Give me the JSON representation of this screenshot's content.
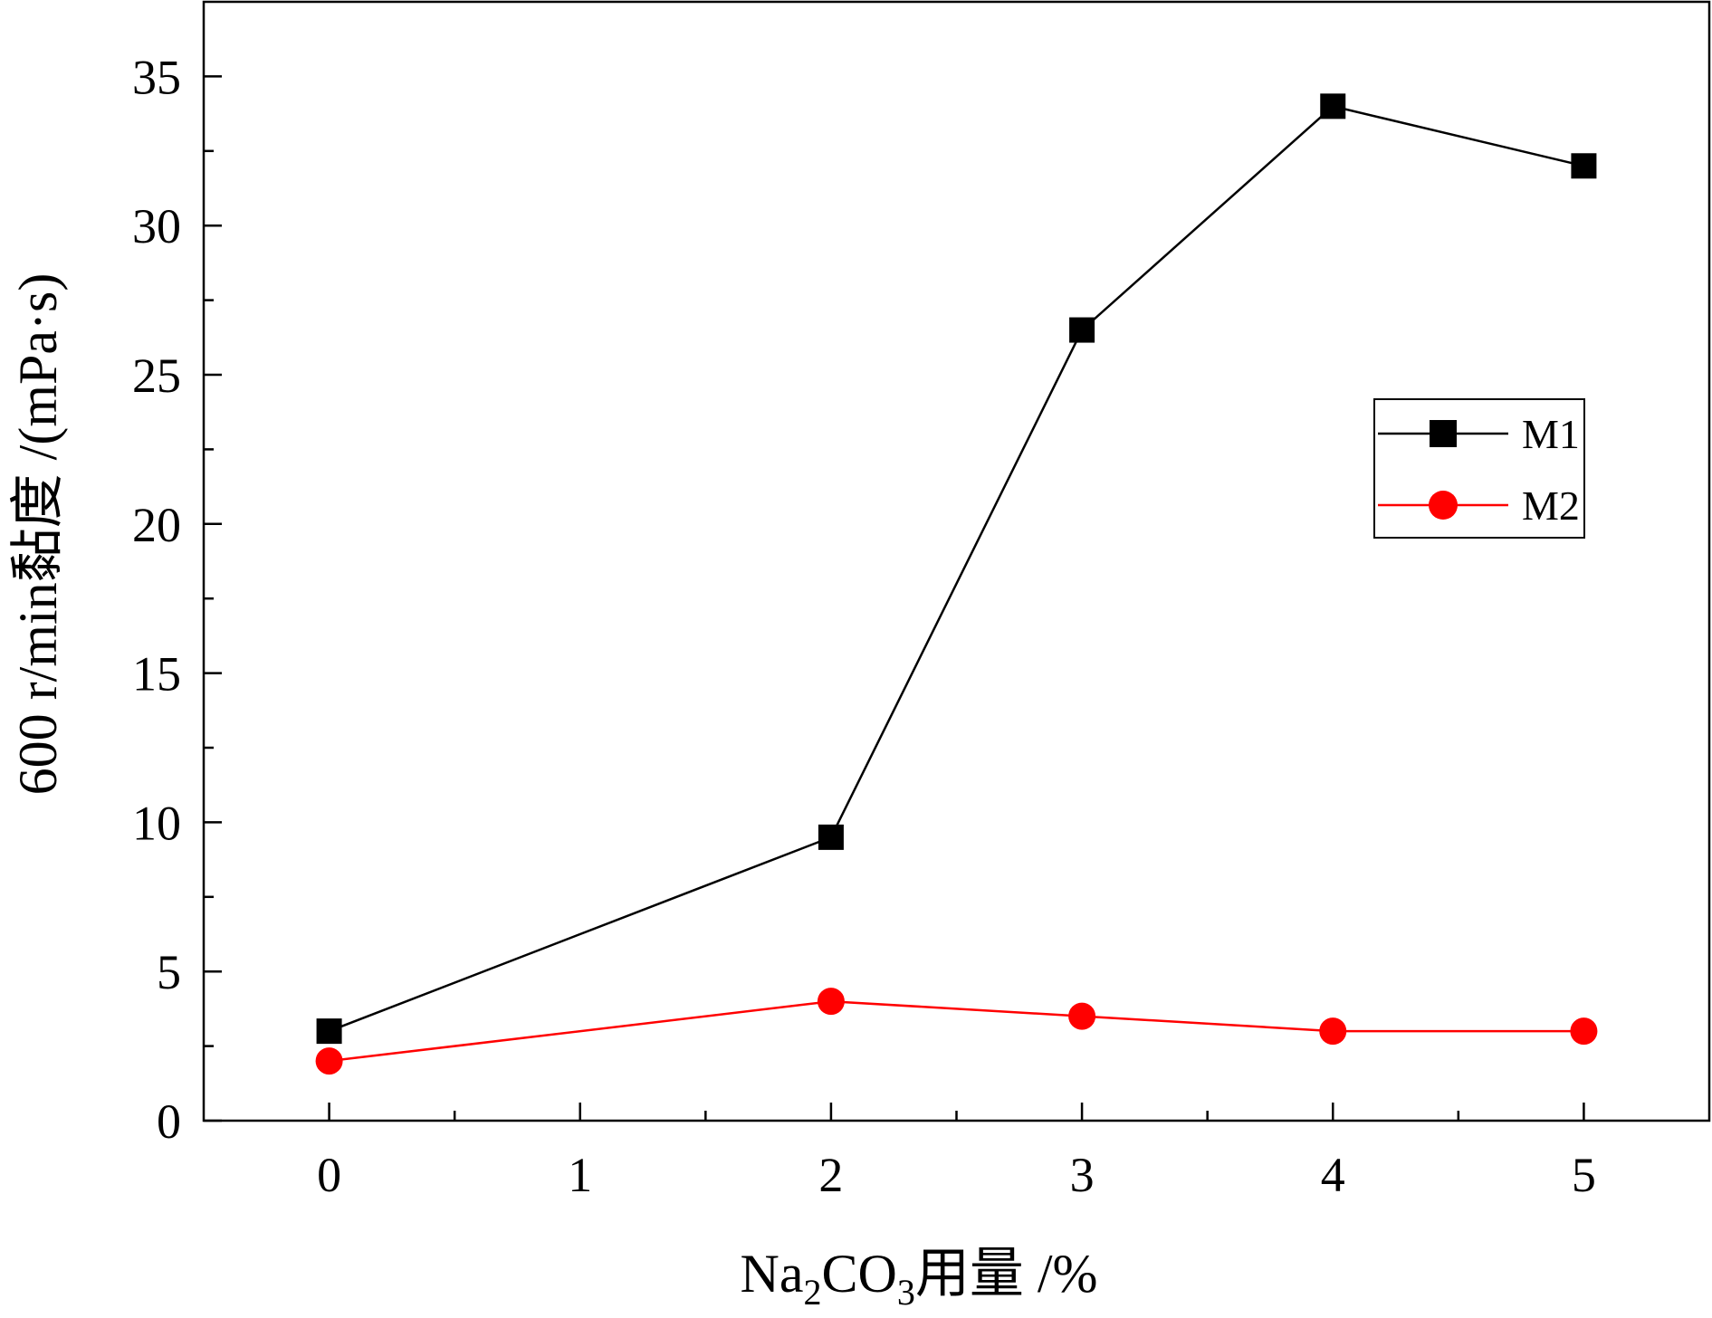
{
  "chart_data": {
    "type": "line",
    "x_ticks": [
      "0",
      "1",
      "2",
      "3",
      "4",
      "5"
    ],
    "y_ticks": [
      "0",
      "5",
      "10",
      "15",
      "20",
      "25",
      "30",
      "35"
    ],
    "xlim": [
      -0.5,
      5.5
    ],
    "ylim": [
      0,
      37.5
    ],
    "x_minor_ticks": [
      0.5,
      1.5,
      2.5,
      3.5,
      4.5
    ],
    "y_minor_ticks": [
      2.5,
      7.5,
      12.5,
      17.5,
      22.5,
      27.5,
      32.5
    ],
    "xlabel": {
      "prefix": "Na",
      "sub1": "2",
      "mid": "CO",
      "sub2": "3",
      "suffix": "用量 /%"
    },
    "ylabel": "600 r/min黏度 /(mPa·s)",
    "grid": false,
    "legend_position": "right",
    "series": [
      {
        "name": "M1",
        "color": "#000000",
        "marker": "square",
        "x": [
          0,
          2,
          3,
          4,
          5
        ],
        "y": [
          3,
          9.5,
          26.5,
          34,
          32
        ]
      },
      {
        "name": "M2",
        "color": "#ff0000",
        "marker": "circle",
        "x": [
          0,
          2,
          3,
          4,
          5
        ],
        "y": [
          2,
          4,
          3.5,
          3,
          3
        ]
      }
    ]
  }
}
